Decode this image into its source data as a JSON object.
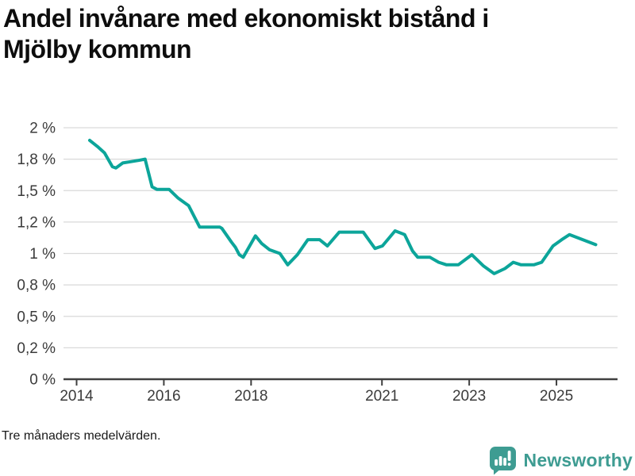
{
  "header": {
    "title": "Andel invånare med ekonomiskt bistånd i Mjölby kommun",
    "title_lines": [
      "Andel invånare med ekonomiskt bistånd i",
      "Mjölby kommun"
    ]
  },
  "footer": {
    "note": "Tre månaders medelvärden."
  },
  "branding": {
    "name": "Newsworthy",
    "icon": "newsworthy-speech-bubble-bar-chart-icon",
    "color": "#3e9c92"
  },
  "colors": {
    "line": "#0ca59a",
    "grid": "#d9d9d9",
    "axis": "#404040",
    "tick_text": "#3b3b3b",
    "title_text": "#0d0d0d",
    "brand_teal": "#3e9c92",
    "background": "#ffffff"
  },
  "chart_data": {
    "type": "line",
    "title": "Andel invånare med ekonomiskt bistånd i Mjölby kommun",
    "note": "Tre månaders medelvärden.",
    "unit": "%",
    "xlabel": "",
    "ylabel": "",
    "xlim": [
      2013.7,
      2026.4
    ],
    "ylim": [
      0,
      2
    ],
    "grid": true,
    "legend_position": "none",
    "x_ticks": [
      {
        "value": 2014,
        "label": "2014"
      },
      {
        "value": 2016,
        "label": "2016"
      },
      {
        "value": 2018,
        "label": "2018"
      },
      {
        "value": 2021,
        "label": "2021"
      },
      {
        "value": 2023,
        "label": "2023"
      },
      {
        "value": 2025,
        "label": "2025"
      }
    ],
    "y_ticks": [
      {
        "value": 0,
        "label": "0 %"
      },
      {
        "value": 0.25,
        "label": "0,2 %"
      },
      {
        "value": 0.5,
        "label": "0,5 %"
      },
      {
        "value": 0.75,
        "label": "0,8 %"
      },
      {
        "value": 1,
        "label": "1 %"
      },
      {
        "value": 1.25,
        "label": "1,2 %"
      },
      {
        "value": 1.5,
        "label": "1,5 %"
      },
      {
        "value": 1.75,
        "label": "1,8 %"
      },
      {
        "value": 2,
        "label": "2 %"
      }
    ],
    "series": [
      {
        "name": "Andel invånare med ekonomiskt bistånd, Mjölby kommun (%)",
        "color": "#0ca59a",
        "points": [
          [
            2014.3,
            1.9
          ],
          [
            2014.48,
            1.85
          ],
          [
            2014.64,
            1.8
          ],
          [
            2014.82,
            1.69
          ],
          [
            2014.9,
            1.68
          ],
          [
            2015.06,
            1.72
          ],
          [
            2015.24,
            1.73
          ],
          [
            2015.42,
            1.74
          ],
          [
            2015.57,
            1.75
          ],
          [
            2015.73,
            1.53
          ],
          [
            2015.84,
            1.51
          ],
          [
            2016.12,
            1.51
          ],
          [
            2016.33,
            1.44
          ],
          [
            2016.57,
            1.38
          ],
          [
            2016.82,
            1.21
          ],
          [
            2017.28,
            1.21
          ],
          [
            2017.33,
            1.2
          ],
          [
            2017.55,
            1.09
          ],
          [
            2017.64,
            1.05
          ],
          [
            2017.73,
            0.99
          ],
          [
            2017.82,
            0.97
          ],
          [
            2018.1,
            1.14
          ],
          [
            2018.24,
            1.08
          ],
          [
            2018.42,
            1.03
          ],
          [
            2018.66,
            1.0
          ],
          [
            2018.84,
            0.91
          ],
          [
            2019.06,
            0.99
          ],
          [
            2019.3,
            1.11
          ],
          [
            2019.57,
            1.11
          ],
          [
            2019.75,
            1.06
          ],
          [
            2020.02,
            1.17
          ],
          [
            2020.57,
            1.17
          ],
          [
            2020.84,
            1.04
          ],
          [
            2021.01,
            1.06
          ],
          [
            2021.3,
            1.18
          ],
          [
            2021.52,
            1.15
          ],
          [
            2021.7,
            1.02
          ],
          [
            2021.82,
            0.97
          ],
          [
            2022.1,
            0.97
          ],
          [
            2022.3,
            0.93
          ],
          [
            2022.48,
            0.91
          ],
          [
            2022.75,
            0.91
          ],
          [
            2023.06,
            0.99
          ],
          [
            2023.33,
            0.9
          ],
          [
            2023.57,
            0.84
          ],
          [
            2023.82,
            0.88
          ],
          [
            2024.01,
            0.93
          ],
          [
            2024.19,
            0.91
          ],
          [
            2024.48,
            0.91
          ],
          [
            2024.66,
            0.93
          ],
          [
            2024.92,
            1.06
          ],
          [
            2025.12,
            1.11
          ],
          [
            2025.3,
            1.15
          ],
          [
            2025.9,
            1.07
          ]
        ]
      }
    ]
  }
}
